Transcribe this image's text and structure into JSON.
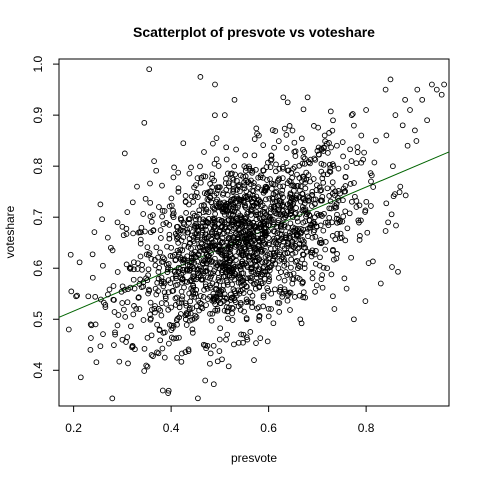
{
  "chart_data": {
    "type": "scatter",
    "title": "Scatterplot of presvote vs voteshare",
    "xlabel": "presvote",
    "ylabel": "voteshare",
    "xlim": [
      0.17,
      0.97
    ],
    "ylim": [
      0.33,
      1.01
    ],
    "x_ticks": [
      "0.2",
      "0.4",
      "0.6",
      "0.8"
    ],
    "y_ticks": [
      "0.4",
      "0.5",
      "0.6",
      "0.7",
      "0.8",
      "0.9",
      "1.0"
    ],
    "grid": false,
    "legend": "none",
    "point_style": "open-circle",
    "point_color": "#000000",
    "fit_line": {
      "intercept": 0.435,
      "slope": 0.405,
      "color": "#006400"
    },
    "points": [
      [
        0.19,
        0.48
      ],
      [
        0.23,
        0.545
      ],
      [
        0.235,
        0.49
      ],
      [
        0.245,
        0.49
      ],
      [
        0.255,
        0.725
      ],
      [
        0.26,
        0.605
      ],
      [
        0.27,
        0.66
      ],
      [
        0.28,
        0.635
      ],
      [
        0.285,
        0.47
      ],
      [
        0.29,
        0.69
      ],
      [
        0.3,
        0.46
      ],
      [
        0.305,
        0.825
      ],
      [
        0.31,
        0.71
      ],
      [
        0.315,
        0.6
      ],
      [
        0.32,
        0.445
      ],
      [
        0.325,
        0.56
      ],
      [
        0.33,
        0.76
      ],
      [
        0.335,
        0.52
      ],
      [
        0.345,
        0.885
      ],
      [
        0.355,
        0.99
      ],
      [
        0.36,
        0.43
      ],
      [
        0.365,
        0.81
      ],
      [
        0.375,
        0.72
      ],
      [
        0.38,
        0.57
      ],
      [
        0.39,
        0.53
      ],
      [
        0.395,
        0.36
      ],
      [
        0.4,
        0.64
      ],
      [
        0.405,
        0.7
      ],
      [
        0.41,
        0.58
      ],
      [
        0.415,
        0.75
      ],
      [
        0.42,
        0.62
      ],
      [
        0.425,
        0.845
      ],
      [
        0.43,
        0.5
      ],
      [
        0.435,
        0.67
      ],
      [
        0.44,
        0.6
      ],
      [
        0.445,
        0.73
      ],
      [
        0.45,
        0.55
      ],
      [
        0.455,
        0.345
      ],
      [
        0.46,
        0.975
      ],
      [
        0.465,
        0.61
      ],
      [
        0.47,
        0.38
      ],
      [
        0.475,
        0.69
      ],
      [
        0.48,
        0.58
      ],
      [
        0.485,
        0.64
      ],
      [
        0.49,
        0.96
      ],
      [
        0.495,
        0.52
      ],
      [
        0.5,
        0.72
      ],
      [
        0.505,
        0.61
      ],
      [
        0.51,
        0.9
      ],
      [
        0.515,
        0.47
      ],
      [
        0.52,
        0.66
      ],
      [
        0.525,
        0.59
      ],
      [
        0.53,
        0.93
      ],
      [
        0.535,
        0.74
      ],
      [
        0.54,
        0.55
      ],
      [
        0.545,
        0.63
      ],
      [
        0.55,
        0.8
      ],
      [
        0.555,
        0.5
      ],
      [
        0.56,
        0.68
      ],
      [
        0.565,
        0.6
      ],
      [
        0.57,
        0.42
      ],
      [
        0.575,
        0.71
      ],
      [
        0.58,
        0.86
      ],
      [
        0.585,
        0.57
      ],
      [
        0.59,
        0.65
      ],
      [
        0.595,
        0.76
      ],
      [
        0.6,
        0.62
      ],
      [
        0.605,
        0.52
      ],
      [
        0.61,
        0.69
      ],
      [
        0.615,
        0.79
      ],
      [
        0.62,
        0.6
      ],
      [
        0.625,
        0.705
      ],
      [
        0.63,
        0.935
      ],
      [
        0.635,
        0.66
      ],
      [
        0.64,
        0.55
      ],
      [
        0.645,
        0.73
      ],
      [
        0.65,
        0.68
      ],
      [
        0.655,
        0.82
      ],
      [
        0.66,
        0.6
      ],
      [
        0.665,
        0.5
      ],
      [
        0.67,
        0.72
      ],
      [
        0.675,
        0.64
      ],
      [
        0.68,
        0.935
      ],
      [
        0.685,
        0.77
      ],
      [
        0.69,
        0.58
      ],
      [
        0.695,
        0.7
      ],
      [
        0.7,
        0.83
      ],
      [
        0.705,
        0.65
      ],
      [
        0.71,
        0.74
      ],
      [
        0.715,
        0.86
      ],
      [
        0.72,
        0.6
      ],
      [
        0.725,
        0.79
      ],
      [
        0.73,
        0.69
      ],
      [
        0.735,
        0.52
      ],
      [
        0.74,
        0.84
      ],
      [
        0.75,
        0.66
      ],
      [
        0.755,
        0.75
      ],
      [
        0.76,
        0.56
      ],
      [
        0.77,
        0.81
      ],
      [
        0.775,
        0.5
      ],
      [
        0.78,
        0.72
      ],
      [
        0.79,
        0.86
      ],
      [
        0.8,
        0.91
      ],
      [
        0.805,
        0.61
      ],
      [
        0.81,
        0.77
      ],
      [
        0.82,
        0.85
      ],
      [
        0.83,
        0.57
      ],
      [
        0.84,
        0.95
      ],
      [
        0.845,
        0.69
      ],
      [
        0.85,
        0.97
      ],
      [
        0.855,
        0.8
      ],
      [
        0.86,
        0.9
      ],
      [
        0.87,
        0.76
      ],
      [
        0.875,
        0.88
      ],
      [
        0.88,
        0.93
      ],
      [
        0.885,
        0.84
      ],
      [
        0.89,
        0.91
      ],
      [
        0.9,
        0.87
      ],
      [
        0.905,
        0.95
      ],
      [
        0.915,
        0.93
      ],
      [
        0.925,
        0.89
      ],
      [
        0.935,
        0.96
      ],
      [
        0.945,
        0.95
      ],
      [
        0.955,
        0.94
      ],
      [
        0.96,
        0.96
      ]
    ]
  }
}
